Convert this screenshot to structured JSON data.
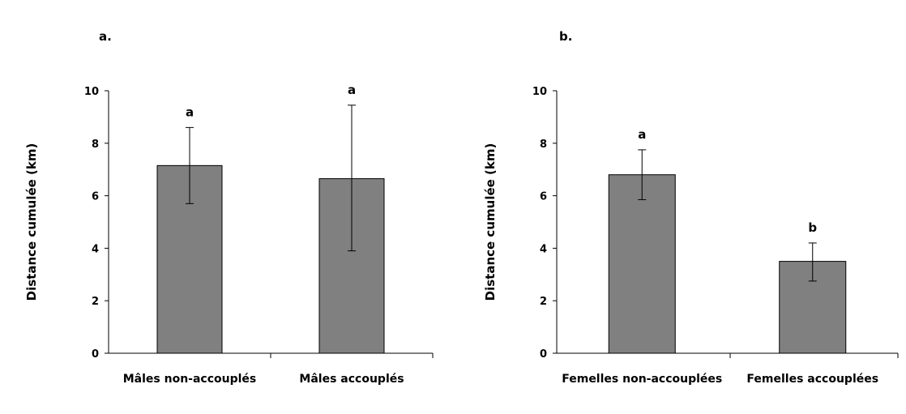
{
  "chart_data": [
    {
      "type": "bar",
      "panel_label": "a.",
      "title": "",
      "xlabel": "",
      "ylabel": "Distance cumulée (km)",
      "ylim": [
        0,
        10
      ],
      "yticks": [
        "0",
        "2",
        "4",
        "6",
        "8",
        "10"
      ],
      "categories": [
        "Mâles non-accouplés",
        "Mâles accouplés"
      ],
      "values": [
        7.15,
        6.65
      ],
      "error_low": [
        5.7,
        3.9
      ],
      "error_high": [
        8.6,
        9.45
      ],
      "significance_letters": [
        "a",
        "a"
      ],
      "bar_color": "#808080",
      "grid": false,
      "legend": "none"
    },
    {
      "type": "bar",
      "panel_label": "b.",
      "title": "",
      "xlabel": "",
      "ylabel": "Distance cumulée (km)",
      "ylim": [
        0,
        10
      ],
      "yticks": [
        "0",
        "2",
        "4",
        "6",
        "8",
        "10"
      ],
      "categories": [
        "Femelles non-accouplées",
        "Femelles accouplées"
      ],
      "values": [
        6.8,
        3.5
      ],
      "error_low": [
        5.85,
        2.75
      ],
      "error_high": [
        7.75,
        4.2
      ],
      "significance_letters": [
        "a",
        "b"
      ],
      "bar_color": "#808080",
      "grid": false,
      "legend": "none"
    }
  ]
}
